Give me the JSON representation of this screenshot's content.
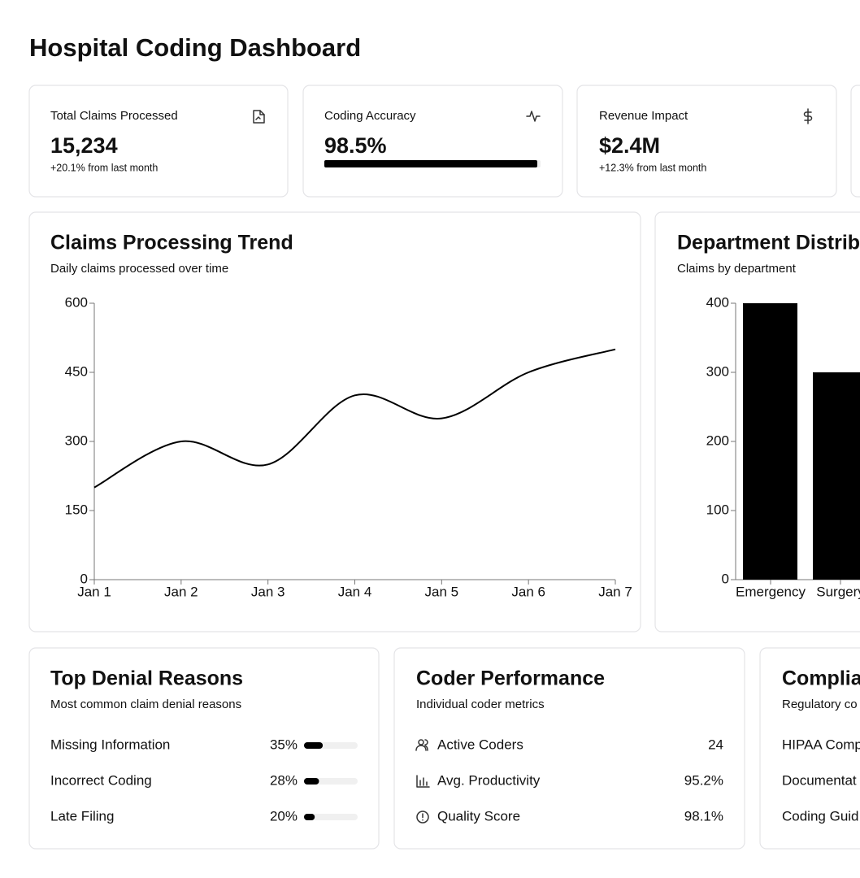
{
  "header": {
    "title": "Hospital Coding Dashboard"
  },
  "stats": [
    {
      "label": "Total Claims Processed",
      "value": "15,234",
      "note": "+20.1% from last month"
    },
    {
      "label": "Coding Accuracy",
      "value": "98.5%",
      "progress": 98.5
    },
    {
      "label": "Revenue Impact",
      "value": "$2.4M",
      "note": "+12.3% from last month"
    }
  ],
  "chart_data": [
    {
      "type": "line",
      "title": "Claims Processing Trend",
      "subtitle": "Daily claims processed over time",
      "categories": [
        "Jan 1",
        "Jan 2",
        "Jan 3",
        "Jan 4",
        "Jan 5",
        "Jan 6",
        "Jan 7"
      ],
      "values": [
        200,
        300,
        250,
        400,
        350,
        450,
        500
      ],
      "color": "#000000",
      "ylim": [
        0,
        600
      ],
      "yticks": [
        0,
        150,
        300,
        450,
        600
      ],
      "grid": false
    },
    {
      "type": "bar",
      "title": "Department Distrib",
      "subtitle": "Claims by department",
      "categories": [
        "Emergency",
        "Surgery"
      ],
      "values": [
        400,
        300
      ],
      "color": "#000000",
      "ylim": [
        0,
        400
      ],
      "yticks": [
        0,
        100,
        200,
        300,
        400
      ],
      "grid": false
    }
  ],
  "denials": {
    "title": "Top Denial Reasons",
    "subtitle": "Most common claim denial reasons",
    "rows": [
      {
        "label": "Missing Information",
        "value": 35,
        "value_label": "35%"
      },
      {
        "label": "Incorrect Coding",
        "value": 28,
        "value_label": "28%"
      },
      {
        "label": "Late Filing",
        "value": 20,
        "value_label": "20%"
      }
    ]
  },
  "coders": {
    "title": "Coder Performance",
    "subtitle": "Individual coder metrics",
    "rows": [
      {
        "label": "Active Coders",
        "value": "24"
      },
      {
        "label": "Avg. Productivity",
        "value": "95.2%"
      },
      {
        "label": "Quality Score",
        "value": "98.1%"
      }
    ]
  },
  "compliance": {
    "title": "Complia",
    "subtitle": "Regulatory co",
    "rows": [
      {
        "label": "HIPAA Comp"
      },
      {
        "label": "Documentat"
      },
      {
        "label": "Coding Guid"
      }
    ]
  }
}
